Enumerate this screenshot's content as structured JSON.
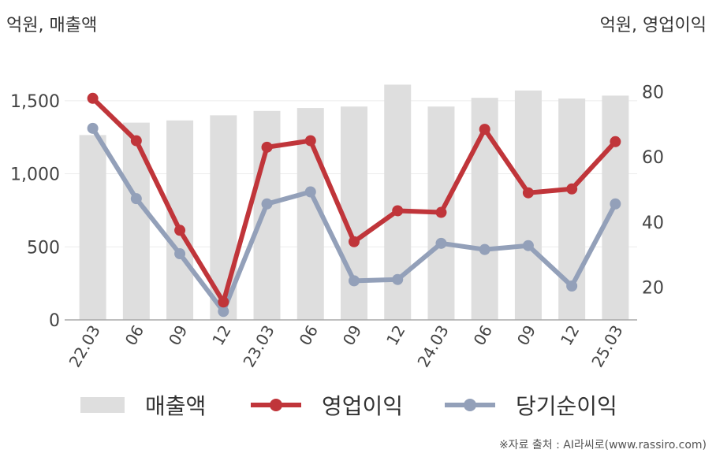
{
  "left_unit": "억원, 매출액",
  "right_unit": "억원, 영업이익",
  "legend": {
    "revenue": "매출액",
    "operating": "영업이익",
    "net": "당기순이익"
  },
  "source": "※자료 출처 : AI라씨로(www.rassiro.com)",
  "colors": {
    "revenue": "#dedede",
    "operating": "#c0353a",
    "net": "#93a0b9"
  },
  "chart_data": {
    "type": "bar+line",
    "categories": [
      "22.03",
      "06",
      "09",
      "12",
      "23.03",
      "06",
      "09",
      "12",
      "24.03",
      "06",
      "09",
      "12",
      "25.03"
    ],
    "y_left": {
      "ticks": [
        0,
        500,
        1000,
        1500
      ],
      "ylim": [
        0,
        1650
      ]
    },
    "y_right": {
      "ticks": [
        20,
        40,
        60,
        80
      ],
      "ylim": [
        10,
        84
      ]
    },
    "series": [
      {
        "name": "매출액",
        "axis": "left",
        "kind": "bar",
        "values": [
          1265,
          1350,
          1365,
          1400,
          1430,
          1450,
          1460,
          1610,
          1460,
          1520,
          1570,
          1515,
          1535
        ]
      },
      {
        "name": "영업이익",
        "axis": "right",
        "kind": "line",
        "values": [
          78,
          65,
          37.5,
          15.5,
          63,
          65,
          34,
          43.5,
          43,
          68.5,
          49,
          50.2,
          64.7
        ]
      },
      {
        "name": "당기순이익",
        "axis": "right",
        "kind": "line",
        "values": [
          68.8,
          47.2,
          30.3,
          12.6,
          45.6,
          49.3,
          22,
          22.4,
          33.5,
          31.6,
          32.8,
          20.4,
          45.6
        ]
      }
    ]
  }
}
